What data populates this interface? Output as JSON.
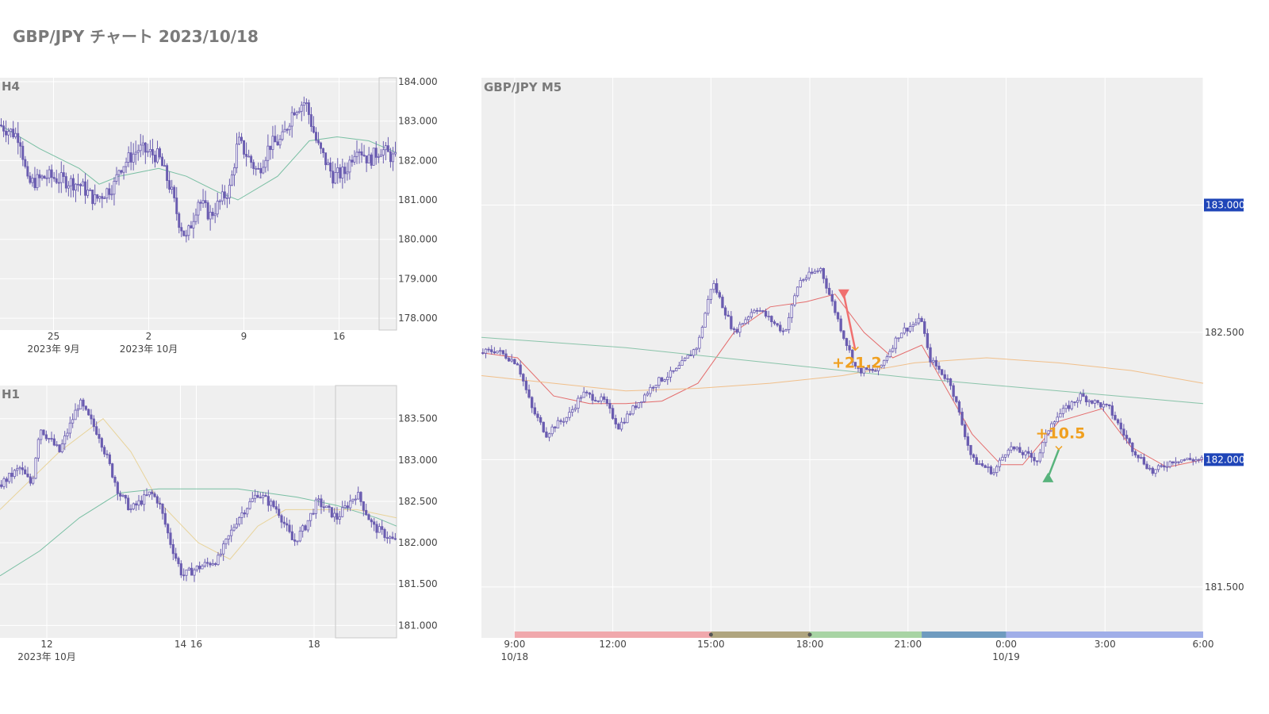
{
  "page": {
    "title": "GBP/JPY チャート 2023/10/18"
  },
  "colors": {
    "plot_bg": "#efefef",
    "grid": "#ffffff",
    "candle": "#6a5cb0",
    "title": "#7a7a7a",
    "tick": "#444444",
    "price_badge": "#1f45b8",
    "trade_sell": "#f07070",
    "trade_buy": "#58b37c",
    "pnl": "#f0a020"
  },
  "chart_data": [
    {
      "id": "h4",
      "type": "candlestick",
      "title": "H4",
      "yticks": [
        "178.000",
        "179.000",
        "180.000",
        "181.000",
        "182.000",
        "183.000",
        "184.000"
      ],
      "ylim": [
        177.7,
        184.1
      ],
      "xticks": [
        {
          "label": "25",
          "sub": "2023年 9月",
          "t": 0.135
        },
        {
          "label": "2",
          "sub": "2023年 10月",
          "t": 0.375
        },
        {
          "label": "9",
          "sub": "",
          "t": 0.615
        },
        {
          "label": "16",
          "sub": "",
          "t": 0.855
        }
      ],
      "candle_count": 165,
      "close_path": [
        [
          0,
          182.9
        ],
        [
          0.05,
          182.6
        ],
        [
          0.07,
          181.4
        ],
        [
          0.12,
          181.6
        ],
        [
          0.2,
          181.4
        ],
        [
          0.24,
          181.0
        ],
        [
          0.29,
          181.4
        ],
        [
          0.3,
          181.8
        ],
        [
          0.35,
          182.3
        ],
        [
          0.4,
          182.1
        ],
        [
          0.43,
          181.3
        ],
        [
          0.45,
          180.5
        ],
        [
          0.47,
          180.0
        ],
        [
          0.5,
          181.0
        ],
        [
          0.53,
          180.6
        ],
        [
          0.58,
          181.3
        ],
        [
          0.6,
          182.5
        ],
        [
          0.65,
          181.7
        ],
        [
          0.68,
          182.4
        ],
        [
          0.71,
          182.5
        ],
        [
          0.74,
          183.3
        ],
        [
          0.77,
          183.5
        ],
        [
          0.8,
          182.4
        ],
        [
          0.84,
          181.6
        ],
        [
          0.87,
          181.7
        ],
        [
          0.9,
          182.4
        ],
        [
          0.93,
          182.0
        ],
        [
          0.96,
          182.3
        ],
        [
          1,
          182.0
        ]
      ],
      "ma": [
        [
          0,
          182.9
        ],
        [
          0.1,
          182.3
        ],
        [
          0.2,
          181.8
        ],
        [
          0.25,
          181.4
        ],
        [
          0.3,
          181.6
        ],
        [
          0.4,
          181.8
        ],
        [
          0.47,
          181.6
        ],
        [
          0.55,
          181.2
        ],
        [
          0.6,
          181.0
        ],
        [
          0.7,
          181.6
        ],
        [
          0.78,
          182.5
        ],
        [
          0.85,
          182.6
        ],
        [
          0.93,
          182.5
        ],
        [
          1,
          182.2
        ]
      ],
      "ma_color": "#79bfa3"
    },
    {
      "id": "h1",
      "type": "candlestick",
      "title": "H1",
      "yticks": [
        "181.000",
        "181.500",
        "182.000",
        "182.500",
        "183.000",
        "183.500"
      ],
      "ylim": [
        180.85,
        183.9
      ],
      "xticks": [
        {
          "label": "12",
          "sub": "2023年 10月",
          "t": 0.118
        },
        {
          "label": "14",
          "sub": "",
          "t": 0.455
        },
        {
          "label": "16",
          "sub": "",
          "t": 0.495
        },
        {
          "label": "18",
          "sub": "",
          "t": 0.792
        }
      ],
      "candle_count": 150,
      "close_path": [
        [
          0,
          182.7
        ],
        [
          0.05,
          182.9
        ],
        [
          0.08,
          182.7
        ],
        [
          0.1,
          183.4
        ],
        [
          0.15,
          183.1
        ],
        [
          0.2,
          183.7
        ],
        [
          0.25,
          183.3
        ],
        [
          0.3,
          182.6
        ],
        [
          0.33,
          182.4
        ],
        [
          0.38,
          182.6
        ],
        [
          0.4,
          182.5
        ],
        [
          0.43,
          182.0
        ],
        [
          0.46,
          181.6
        ],
        [
          0.5,
          181.7
        ],
        [
          0.55,
          181.8
        ],
        [
          0.6,
          182.3
        ],
        [
          0.65,
          182.6
        ],
        [
          0.7,
          182.4
        ],
        [
          0.74,
          182.0
        ],
        [
          0.77,
          182.2
        ],
        [
          0.8,
          182.5
        ],
        [
          0.85,
          182.3
        ],
        [
          0.9,
          182.6
        ],
        [
          0.94,
          182.2
        ],
        [
          1,
          182.0
        ]
      ],
      "ma": [
        [
          0,
          181.6
        ],
        [
          0.1,
          181.9
        ],
        [
          0.2,
          182.3
        ],
        [
          0.3,
          182.6
        ],
        [
          0.4,
          182.65
        ],
        [
          0.6,
          182.65
        ],
        [
          0.75,
          182.55
        ],
        [
          0.85,
          182.45
        ],
        [
          0.95,
          182.3
        ],
        [
          1,
          182.2
        ]
      ],
      "ma_color": "#79bfa3",
      "ma2": [
        [
          0,
          182.4
        ],
        [
          0.15,
          183.1
        ],
        [
          0.26,
          183.5
        ],
        [
          0.33,
          183.1
        ],
        [
          0.4,
          182.5
        ],
        [
          0.5,
          182.0
        ],
        [
          0.58,
          181.8
        ],
        [
          0.65,
          182.2
        ],
        [
          0.72,
          182.4
        ],
        [
          0.8,
          182.4
        ],
        [
          0.9,
          182.4
        ],
        [
          1,
          182.3
        ]
      ],
      "ma2_color": "#e8d39a"
    },
    {
      "id": "m5",
      "type": "candlestick",
      "title": "GBP/JPY M5",
      "yticks": [
        "181.500",
        "182.500"
      ],
      "badges": [
        "183.000",
        "182.000"
      ],
      "ylim": [
        181.3,
        183.5
      ],
      "xticks": [
        {
          "label": "9:00",
          "sub": "10/18",
          "t": 0.046
        },
        {
          "label": "12:00",
          "sub": "",
          "t": 0.182
        },
        {
          "label": "15:00",
          "sub": "",
          "t": 0.318
        },
        {
          "label": "18:00",
          "sub": "",
          "t": 0.455
        },
        {
          "label": "21:00",
          "sub": "",
          "t": 0.591
        },
        {
          "label": "0:00",
          "sub": "10/19",
          "t": 0.727
        },
        {
          "label": "3:00",
          "sub": "",
          "t": 0.864
        },
        {
          "label": "6:00",
          "sub": "",
          "t": 1.0
        }
      ],
      "candle_count": 250,
      "close_path": [
        [
          0,
          182.42
        ],
        [
          0.02,
          182.43
        ],
        [
          0.05,
          182.38
        ],
        [
          0.07,
          182.2
        ],
        [
          0.09,
          182.1
        ],
        [
          0.1,
          182.13
        ],
        [
          0.12,
          182.17
        ],
        [
          0.14,
          182.26
        ],
        [
          0.17,
          182.23
        ],
        [
          0.19,
          182.13
        ],
        [
          0.21,
          182.2
        ],
        [
          0.24,
          182.3
        ],
        [
          0.27,
          182.35
        ],
        [
          0.3,
          182.45
        ],
        [
          0.32,
          182.7
        ],
        [
          0.35,
          182.5
        ],
        [
          0.38,
          182.6
        ],
        [
          0.4,
          182.55
        ],
        [
          0.42,
          182.5
        ],
        [
          0.44,
          182.7
        ],
        [
          0.47,
          182.75
        ],
        [
          0.5,
          182.5
        ],
        [
          0.52,
          182.35
        ],
        [
          0.55,
          182.35
        ],
        [
          0.58,
          182.5
        ],
        [
          0.61,
          182.55
        ],
        [
          0.62,
          182.4
        ],
        [
          0.65,
          182.3
        ],
        [
          0.68,
          182.0
        ],
        [
          0.71,
          181.95
        ],
        [
          0.73,
          182.05
        ],
        [
          0.77,
          182.0
        ],
        [
          0.79,
          182.15
        ],
        [
          0.83,
          182.25
        ],
        [
          0.87,
          182.2
        ],
        [
          0.9,
          182.05
        ],
        [
          0.93,
          181.95
        ],
        [
          0.96,
          182.0
        ],
        [
          1,
          182.0
        ]
      ],
      "mas": [
        {
          "color": "#e46c6c",
          "pts": [
            [
              0,
              182.42
            ],
            [
              0.05,
              182.4
            ],
            [
              0.1,
              182.25
            ],
            [
              0.15,
              182.22
            ],
            [
              0.2,
              182.22
            ],
            [
              0.25,
              182.23
            ],
            [
              0.3,
              182.3
            ],
            [
              0.35,
              182.5
            ],
            [
              0.4,
              182.6
            ],
            [
              0.45,
              182.62
            ],
            [
              0.49,
              182.65
            ],
            [
              0.53,
              182.5
            ],
            [
              0.57,
              182.4
            ],
            [
              0.61,
              182.45
            ],
            [
              0.64,
              182.3
            ],
            [
              0.68,
              182.1
            ],
            [
              0.72,
              181.98
            ],
            [
              0.75,
              181.98
            ],
            [
              0.8,
              182.15
            ],
            [
              0.86,
              182.2
            ],
            [
              0.9,
              182.05
            ],
            [
              0.95,
              181.97
            ],
            [
              1,
              182.0
            ]
          ]
        },
        {
          "color": "#f0bf8a",
          "pts": [
            [
              0,
              182.33
            ],
            [
              0.1,
              182.3
            ],
            [
              0.2,
              182.27
            ],
            [
              0.3,
              182.28
            ],
            [
              0.4,
              182.3
            ],
            [
              0.5,
              182.33
            ],
            [
              0.6,
              182.38
            ],
            [
              0.7,
              182.4
            ],
            [
              0.8,
              182.38
            ],
            [
              0.9,
              182.35
            ],
            [
              1,
              182.3
            ]
          ]
        },
        {
          "color": "#8ac4aa",
          "pts": [
            [
              0,
              182.48
            ],
            [
              0.2,
              182.44
            ],
            [
              0.4,
              182.38
            ],
            [
              0.6,
              182.32
            ],
            [
              0.8,
              182.27
            ],
            [
              1,
              182.22
            ]
          ]
        }
      ],
      "trades": [
        {
          "side": "sell",
          "entry": [
            0.502,
            182.65
          ],
          "exit": [
            0.518,
            182.43
          ],
          "pnl": "+21.2"
        },
        {
          "side": "buy",
          "entry": [
            0.785,
            181.93
          ],
          "exit": [
            0.8,
            182.04
          ],
          "pnl": "+10.5"
        }
      ],
      "sessions": [
        {
          "from": 0.046,
          "to": 0.318,
          "color": "#f0a8ac"
        },
        {
          "from": 0.318,
          "to": 0.455,
          "color": "#b0a57f"
        },
        {
          "from": 0.455,
          "to": 0.61,
          "color": "#a8d4a4"
        },
        {
          "from": 0.61,
          "to": 0.727,
          "color": "#6f9bbf"
        },
        {
          "from": 0.727,
          "to": 1.0,
          "color": "#a0aee8"
        }
      ]
    }
  ]
}
